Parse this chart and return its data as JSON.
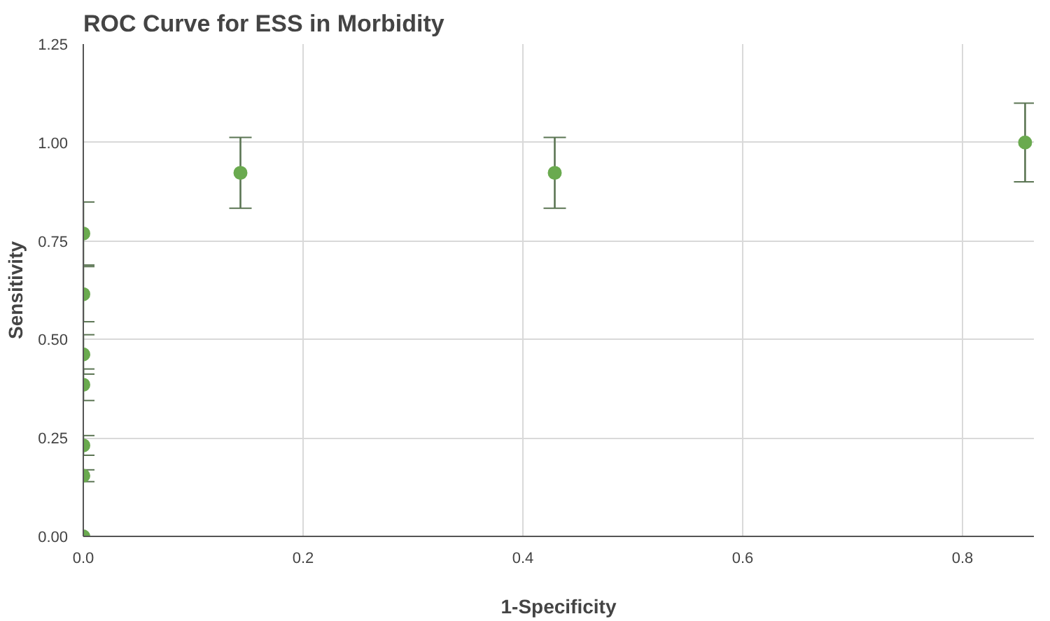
{
  "chart_data": {
    "type": "scatter",
    "title": "ROC Curve for ESS in Morbidity",
    "xlabel": "1-Specificity",
    "ylabel": "Sensitivity",
    "x": [
      0,
      0,
      0,
      0,
      0,
      0,
      0,
      0.143,
      0.429,
      0.857
    ],
    "series": [
      {
        "color": "#6aaa4f",
        "values": [
          0,
          0.154,
          0.231,
          0.385,
          0.462,
          0.615,
          0.769,
          0.923,
          0.923,
          1.0
        ],
        "errors": [
          null,
          0.015,
          0.025,
          0.04,
          0.05,
          0.07,
          0.08,
          0.09,
          0.09,
          0.1
        ]
      }
    ],
    "xlim": [
      0,
      0.865
    ],
    "ylim": [
      0,
      1.25
    ],
    "xticks": [
      {
        "value": 0,
        "label": "0.0"
      },
      {
        "value": 0.2,
        "label": "0.2"
      },
      {
        "value": 0.4,
        "label": "0.4"
      },
      {
        "value": 0.6,
        "label": "0.6"
      },
      {
        "value": 0.8,
        "label": "0.8"
      }
    ],
    "yticks": [
      {
        "value": 0,
        "label": "0.00"
      },
      {
        "value": 0.25,
        "label": "0.25"
      },
      {
        "value": 0.5,
        "label": "0.50"
      },
      {
        "value": 0.75,
        "label": "0.75"
      },
      {
        "value": 1.0,
        "label": "1.00"
      },
      {
        "value": 1.25,
        "label": "1.25"
      }
    ],
    "grid": true,
    "marker": "circle"
  }
}
